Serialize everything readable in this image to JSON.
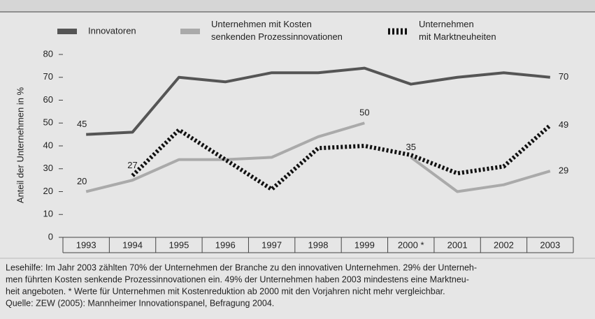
{
  "chart_data": {
    "type": "line",
    "ylabel": "Anteil der Unternehmen in %",
    "categories": [
      "1993",
      "1994",
      "1995",
      "1996",
      "1997",
      "1998",
      "1999",
      "2000 *",
      "2001",
      "2002",
      "2003"
    ],
    "series": [
      {
        "name": "Innovatoren",
        "color": "#555555",
        "dash": "none",
        "width": 4,
        "values": [
          45,
          46,
          70,
          68,
          72,
          72,
          74,
          67,
          70,
          72,
          70
        ],
        "labeled": [
          0,
          10
        ]
      },
      {
        "name": "Unternehmen mit Kosten\nsenkenden Prozessinnovationen",
        "color": "#aaaaaa",
        "dash": "none",
        "width": 4,
        "values": [
          20,
          25,
          34,
          34,
          35,
          44,
          50,
          35,
          20,
          23,
          29
        ],
        "labeled": [
          0,
          6,
          7,
          10
        ],
        "breaks_after": [
          6
        ]
      },
      {
        "name": "Unternehmen\nmit Marktneuheiten",
        "color": "#111111",
        "dash": "3,3",
        "width": 6,
        "values": [
          null,
          27,
          47,
          34,
          21,
          39,
          40,
          36,
          28,
          31,
          49
        ],
        "labeled": [
          1,
          10
        ]
      }
    ],
    "ylim": [
      0,
      80
    ],
    "yticks": [
      0,
      10,
      20,
      30,
      40,
      50,
      60,
      70,
      80
    ],
    "grid": false,
    "notes": [
      "Lesehilfe: Im Jahr 2003 zählten 70% der Unternehmen der Branche zu den innovativen Unternehmen. 29% der Unterneh-",
      "men führten Kosten senkende Prozessinnovationen ein. 49% der Unternehmen haben 2003 mindestens eine Marktneu-",
      "heit angeboten. * Werte für Unternehmen mit Kostenreduktion ab 2000 mit den Vorjahren nicht mehr vergleichbar.",
      "Quelle: ZEW (2005): Mannheimer Innovationspanel, Befragung 2004."
    ]
  }
}
